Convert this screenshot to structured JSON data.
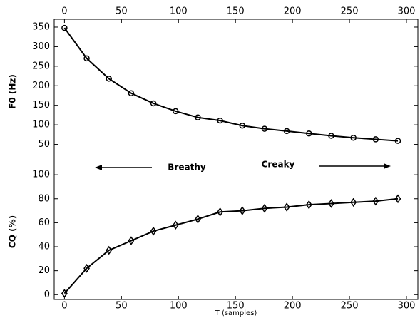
{
  "chart_data": [
    {
      "type": "line",
      "ylabel": "F0 (Hz)",
      "xaxis": "top",
      "marker": "circle",
      "color": "#000000",
      "x": [
        0,
        19.5,
        39,
        58.5,
        78,
        97.5,
        117,
        136.5,
        156,
        175.5,
        195,
        214.5,
        234,
        253.5,
        273,
        292.5
      ],
      "values": [
        348,
        270,
        218,
        181,
        155,
        135,
        119,
        111,
        98,
        90,
        84,
        78,
        72,
        67,
        63,
        59
      ],
      "xlim": [
        -9,
        310
      ],
      "xticks": [
        0,
        50,
        100,
        150,
        200,
        250,
        300
      ],
      "ylim": [
        0,
        370
      ],
      "yticks": [
        50,
        100,
        150,
        200,
        250,
        300,
        350
      ],
      "annotations": [
        "Breathy",
        "Creaky"
      ]
    },
    {
      "type": "line",
      "ylabel": "CQ (%)",
      "xlabel": "T (samples)",
      "xaxis": "bottom",
      "marker": "diamond",
      "color": "#000000",
      "x": [
        0,
        19.5,
        39,
        58.5,
        78,
        97.5,
        117,
        136.5,
        156,
        175.5,
        195,
        214.5,
        234,
        253.5,
        273,
        292.5
      ],
      "values": [
        1,
        22,
        37,
        45,
        53,
        58,
        63,
        69,
        70,
        72,
        73,
        75,
        76,
        77,
        78,
        80
      ],
      "xlim": [
        -9,
        310
      ],
      "xticks": [
        0,
        50,
        100,
        150,
        200,
        250,
        300
      ],
      "ylim": [
        -4,
        109
      ],
      "yticks": [
        0,
        20,
        40,
        60,
        80,
        100
      ]
    }
  ]
}
